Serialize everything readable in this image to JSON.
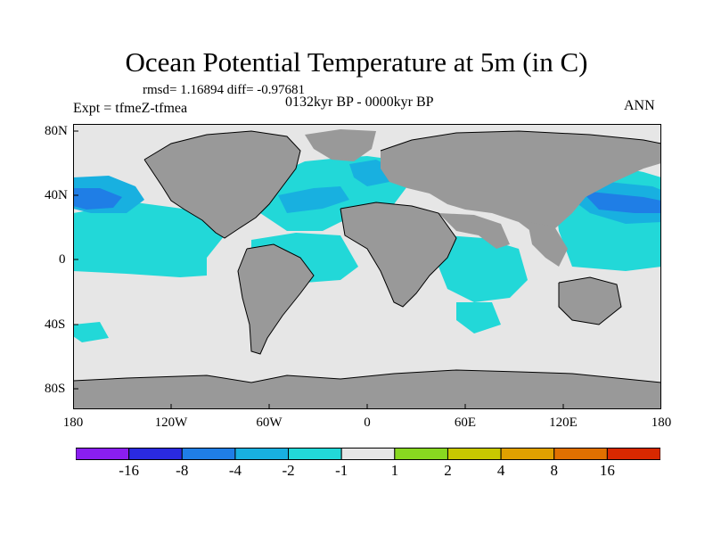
{
  "title": "Ocean Potential Temperature at 5m (in C)",
  "stats_line": "rmsd= 1.16894 diff= -0.97681",
  "experiment": "Expt = tfmeZ-tfmea",
  "period": "0132kyr BP - 0000kyr BP",
  "season": "ANN",
  "map": {
    "y_ticks": [
      "80N",
      "40N",
      "0",
      "40S",
      "80S"
    ],
    "x_ticks": [
      "180",
      "120W",
      "60W",
      "0",
      "60E",
      "120E",
      "180"
    ],
    "colors": {
      "land": "#999999",
      "ocean_neutral": "#e6e6e6",
      "cyan": "#22d8d8",
      "light_blue": "#18b0e0",
      "blue": "#1f7ee6",
      "coast": "#000000"
    }
  },
  "colorbar": {
    "colors": [
      "#8a1ef0",
      "#2a2ae0",
      "#1f7ee6",
      "#18b0e0",
      "#22d8d8",
      "#e6e6e6",
      "#88d820",
      "#c8c800",
      "#e0a000",
      "#e07000",
      "#d82800"
    ],
    "labels": [
      "-16",
      "-8",
      "-4",
      "-2",
      "-1",
      "1",
      "2",
      "4",
      "8",
      "16"
    ]
  }
}
